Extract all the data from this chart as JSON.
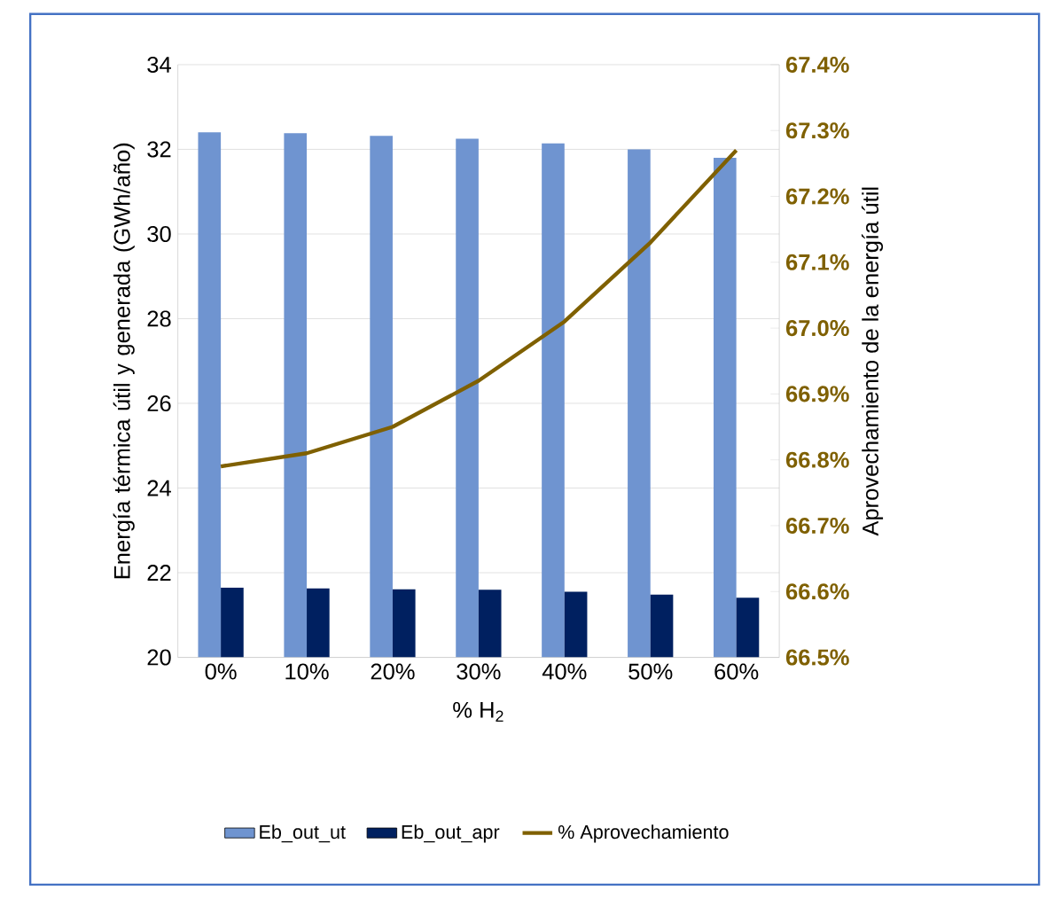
{
  "chart_data": {
    "type": "bar",
    "xlabel": "% H$_{2}$",
    "ylabel": "Energía térmica útil  y generada (GWh/año)",
    "y2label": "Aprovechamiento de la energía útil",
    "categories": [
      "0%",
      "10%",
      "20%",
      "30%",
      "40%",
      "50%",
      "60%"
    ],
    "series": [
      {
        "name": "Eb_out_ut",
        "color": "#6f94d0",
        "values": [
          32.4,
          32.38,
          32.32,
          32.25,
          32.14,
          32.0,
          31.8
        ]
      },
      {
        "name": "Eb_out_apr",
        "color": "#002060",
        "values": [
          21.65,
          21.63,
          21.61,
          21.6,
          21.55,
          21.48,
          21.41
        ]
      },
      {
        "name": "% Aprovechamiento",
        "type": "line",
        "axis": "y2",
        "color": "#7f6000",
        "values": [
          66.79,
          66.81,
          66.85,
          66.92,
          67.01,
          67.13,
          67.27
        ]
      }
    ],
    "ylim": [
      20,
      34
    ],
    "yticks": [
      20,
      22,
      24,
      26,
      28,
      30,
      32,
      34
    ],
    "y2lim": [
      66.5,
      67.4
    ],
    "y2ticks": [
      {
        "value": 66.5,
        "label": "66.5%"
      },
      {
        "value": 66.6,
        "label": "66.6%"
      },
      {
        "value": 66.7,
        "label": "66.7%"
      },
      {
        "value": 66.8,
        "label": "66.8%"
      },
      {
        "value": 66.9,
        "label": "66.9%"
      },
      {
        "value": 67.0,
        "label": "67.0%"
      },
      {
        "value": 67.1,
        "label": "67.1%"
      },
      {
        "value": 67.2,
        "label": "67.2%"
      },
      {
        "value": 67.3,
        "label": "67.3%"
      },
      {
        "value": 67.4,
        "label": "67.4%"
      }
    ],
    "grid": "y",
    "legend": "bottom",
    "marker": "none"
  }
}
